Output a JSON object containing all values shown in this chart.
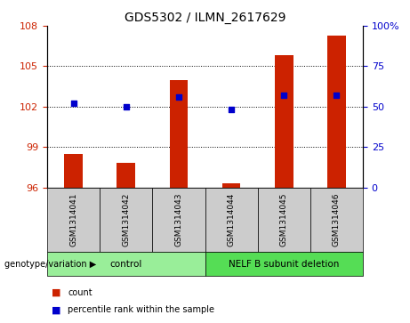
{
  "title": "GDS5302 / ILMN_2617629",
  "samples": [
    "GSM1314041",
    "GSM1314042",
    "GSM1314043",
    "GSM1314044",
    "GSM1314045",
    "GSM1314046"
  ],
  "counts": [
    98.5,
    97.8,
    104.0,
    96.3,
    105.8,
    107.3
  ],
  "percentile_ranks": [
    52,
    50,
    56,
    48,
    57,
    57
  ],
  "ylim_left": [
    96,
    108
  ],
  "yticks_left": [
    96,
    99,
    102,
    105,
    108
  ],
  "ylim_right": [
    0,
    100
  ],
  "yticks_right": [
    0,
    25,
    50,
    75,
    100
  ],
  "bar_color": "#cc2200",
  "dot_color": "#0000cc",
  "bar_baseline": 96,
  "groups": [
    {
      "label": "control",
      "start": 0,
      "end": 3,
      "color": "#99ee99"
    },
    {
      "label": "NELF B subunit deletion",
      "start": 3,
      "end": 6,
      "color": "#55dd55"
    }
  ],
  "group_label_prefix": "genotype/variation",
  "legend_items": [
    {
      "color": "#cc2200",
      "label": "count"
    },
    {
      "color": "#0000cc",
      "label": "percentile rank within the sample"
    }
  ],
  "xticklabel_bg": "#cccccc",
  "bar_width": 0.35
}
